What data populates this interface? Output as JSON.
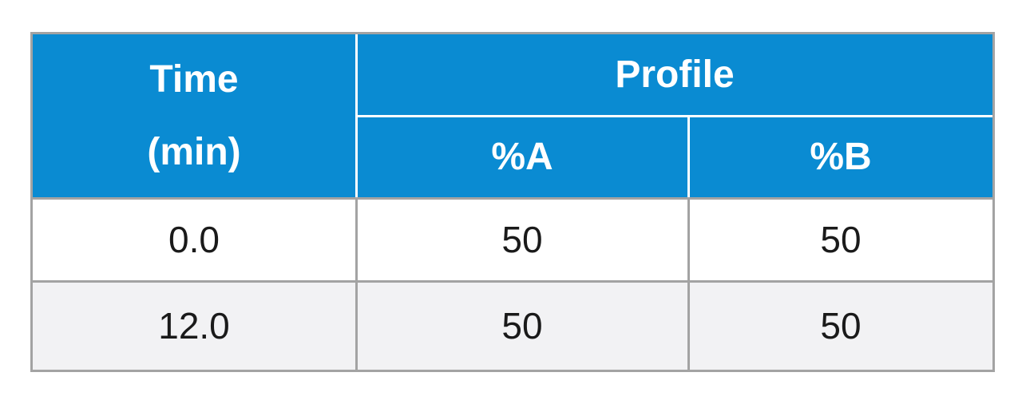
{
  "table": {
    "header": {
      "time": [
        "Time",
        "(min)"
      ],
      "profile": "Profile",
      "columns": [
        "%A",
        "%B"
      ]
    },
    "rows": [
      [
        "0.0",
        "50",
        "50"
      ],
      [
        "12.0",
        "50",
        "50"
      ]
    ]
  }
}
